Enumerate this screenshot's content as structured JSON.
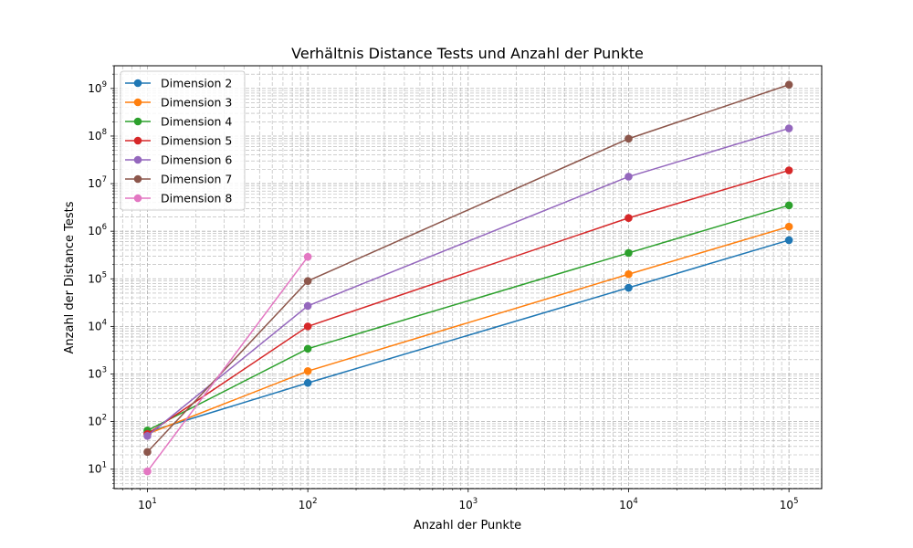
{
  "chart_data": {
    "type": "line",
    "title": "Verhältnis Distance Tests und Anzahl der Punkte",
    "xlabel": "Anzahl der Punkte",
    "ylabel": "Anzahl der Distance Tests",
    "x_scale": "log",
    "y_scale": "log",
    "xlim": [
      6.2,
      160000
    ],
    "ylim": [
      3.9,
      3000000000
    ],
    "x_ticks": [
      {
        "base": "10",
        "exp": "1",
        "value": 10
      },
      {
        "base": "10",
        "exp": "2",
        "value": 100
      },
      {
        "base": "10",
        "exp": "3",
        "value": 1000
      },
      {
        "base": "10",
        "exp": "4",
        "value": 10000
      },
      {
        "base": "10",
        "exp": "5",
        "value": 100000
      }
    ],
    "y_ticks": [
      {
        "base": "10",
        "exp": "1",
        "value": 10
      },
      {
        "base": "10",
        "exp": "2",
        "value": 100
      },
      {
        "base": "10",
        "exp": "3",
        "value": 1000
      },
      {
        "base": "10",
        "exp": "4",
        "value": 10000
      },
      {
        "base": "10",
        "exp": "5",
        "value": 100000
      },
      {
        "base": "10",
        "exp": "6",
        "value": 1000000
      },
      {
        "base": "10",
        "exp": "7",
        "value": 10000000
      },
      {
        "base": "10",
        "exp": "8",
        "value": 100000000
      },
      {
        "base": "10",
        "exp": "9",
        "value": 1000000000
      }
    ],
    "grid": "major and minor, dashed",
    "legend": "top-left",
    "series": [
      {
        "name": "Dimension 2",
        "color": "#1f77b4",
        "x": [
          10,
          100,
          10000,
          100000
        ],
        "values": [
          60,
          650,
          65000,
          650000
        ]
      },
      {
        "name": "Dimension 3",
        "color": "#ff7f0e",
        "x": [
          10,
          100,
          10000,
          100000
        ],
        "values": [
          55,
          1150,
          125000,
          1250000
        ]
      },
      {
        "name": "Dimension 4",
        "color": "#2ca02c",
        "x": [
          10,
          100,
          10000,
          100000
        ],
        "values": [
          65,
          3400,
          350000,
          3500000
        ]
      },
      {
        "name": "Dimension 5",
        "color": "#d62728",
        "x": [
          10,
          100,
          10000,
          100000
        ],
        "values": [
          55,
          10000,
          1900000,
          19000000
        ]
      },
      {
        "name": "Dimension 6",
        "color": "#9467bd",
        "x": [
          10,
          100,
          10000,
          100000
        ],
        "values": [
          50,
          27000,
          14000000,
          145000000
        ]
      },
      {
        "name": "Dimension 7",
        "color": "#8c564b",
        "x": [
          10,
          100,
          10000,
          100000
        ],
        "values": [
          23,
          90000,
          88000000,
          1200000000
        ]
      },
      {
        "name": "Dimension 8",
        "color": "#e377c2",
        "x": [
          10,
          100
        ],
        "values": [
          9,
          290000
        ]
      }
    ]
  }
}
